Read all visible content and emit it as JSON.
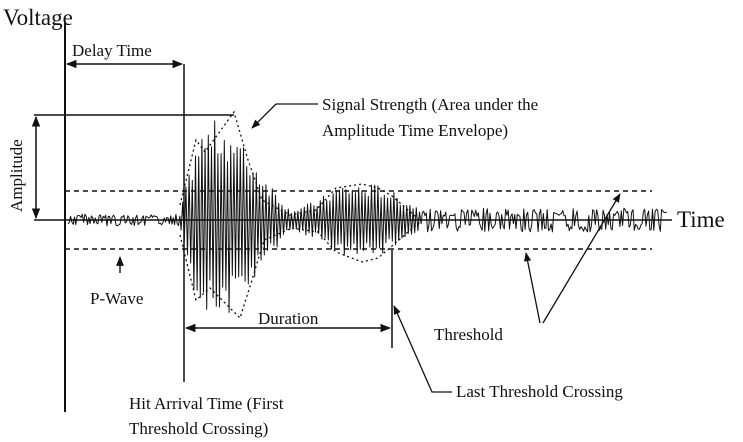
{
  "diagram": {
    "labels": {
      "voltage_axis": "Voltage",
      "time_axis": "Time",
      "amplitude": "Amplitude",
      "delay_time": "Delay Time",
      "signal_strength_line1": "Signal Strength  (Area under the",
      "signal_strength_line2": "Amplitude Time Envelope)",
      "p_wave": "P-Wave",
      "duration": "Duration",
      "threshold": "Threshold",
      "last_threshold_crossing": "Last Threshold Crossing",
      "hit_arrival_line1": "Hit Arrival Time (First",
      "hit_arrival_line2": "Threshold Crossing)"
    },
    "colors": {
      "ink": "#111111",
      "background": "#ffffff"
    }
  }
}
